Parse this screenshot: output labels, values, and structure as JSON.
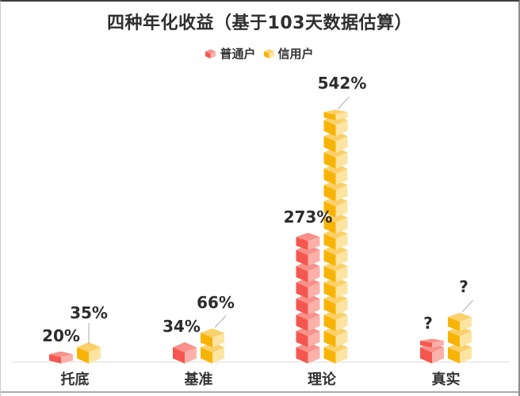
{
  "title": "四种年化收益（基于103天数据估算）",
  "legend": {
    "items": [
      {
        "label": "普通户",
        "icon": "cube-icon",
        "color": "#f4574f"
      },
      {
        "label": "信用户",
        "icon": "cube-icon",
        "color": "#f8b406"
      }
    ]
  },
  "chart_data": {
    "type": "bar",
    "style": "pictorial-isometric-cube-stack",
    "title": "四种年化收益（基于103天数据估算）",
    "categories": [
      "托底",
      "基准",
      "理论",
      "真实"
    ],
    "series": [
      {
        "name": "普通户",
        "values": [
          20,
          34,
          273,
          null
        ],
        "value_labels": [
          "20%",
          "34%",
          "273%",
          "?"
        ],
        "colors": {
          "front": "#f4574f",
          "top": "#f8918b",
          "side": "#fbb0aa"
        }
      },
      {
        "name": "信用户",
        "values": [
          35,
          66,
          542,
          null
        ],
        "value_labels": [
          "35%",
          "66%",
          "542%",
          "?"
        ],
        "colors": {
          "front": "#f8b406",
          "top": "#fbd06a",
          "side": "#fde4a0"
        }
      }
    ],
    "pct_per_cube": 35,
    "unknown_bar_estimated_pct": [
      {
        "series": "普通户",
        "category": "真实",
        "approx_pct": 49
      },
      {
        "series": "信用户",
        "category": "真实",
        "approx_pct": 100
      }
    ],
    "ylim": [
      0,
      600
    ],
    "grid": false,
    "legend_position": "top",
    "axis_color": "#ededed",
    "leader_line_color": "#b8b8b8"
  }
}
